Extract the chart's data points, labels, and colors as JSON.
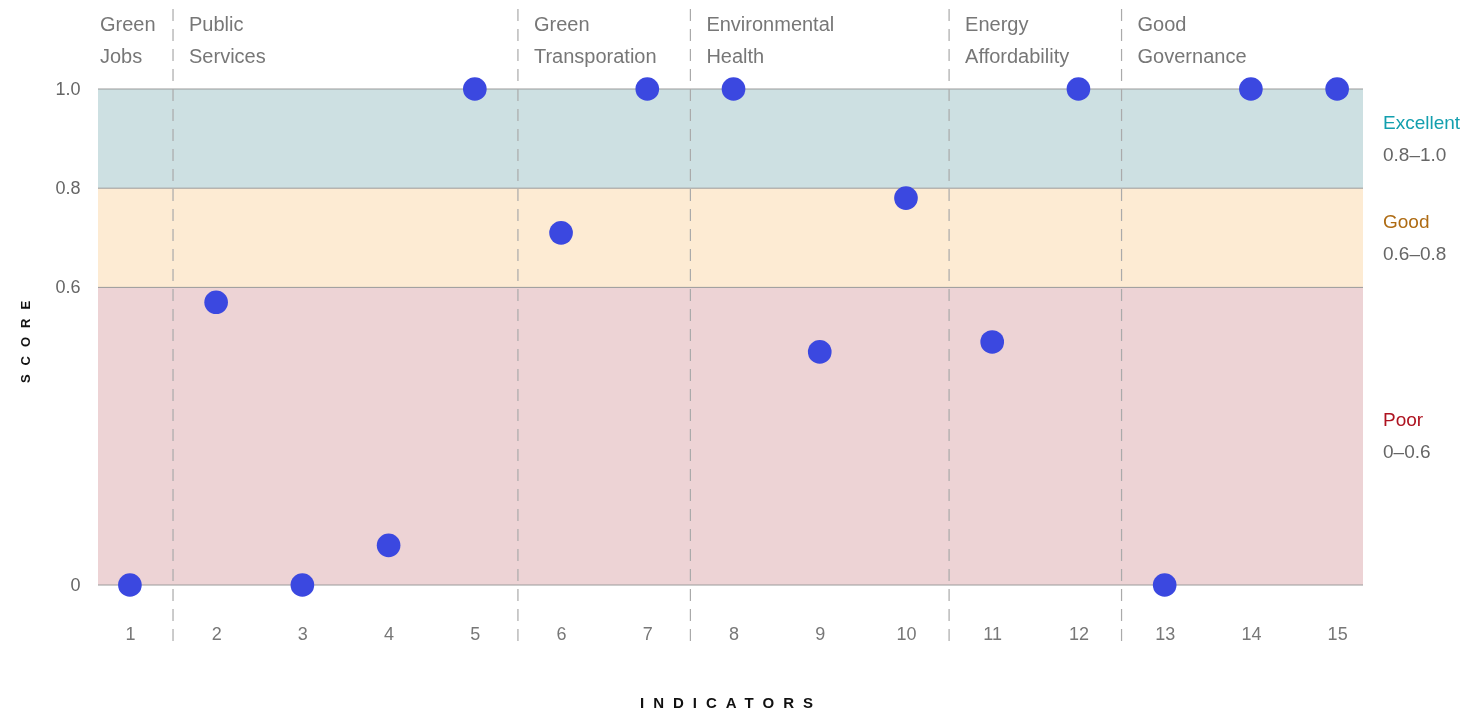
{
  "chart_data": {
    "type": "scatter",
    "xlabel": "INDICATORS",
    "ylabel": "SCORE",
    "x": [
      1,
      2,
      3,
      4,
      5,
      6,
      7,
      8,
      9,
      10,
      11,
      12,
      13,
      14,
      15
    ],
    "values": [
      0,
      0.57,
      0,
      0.08,
      1,
      0.71,
      1,
      1,
      0.47,
      0.78,
      0.49,
      1,
      0,
      1,
      1
    ],
    "color": "#3b48e0",
    "marker": "circle",
    "xlim": [
      0.63,
      15.3
    ],
    "xticks": [
      1,
      2,
      3,
      4,
      5,
      6,
      7,
      8,
      9,
      10,
      11,
      12,
      13,
      14,
      15
    ],
    "ylim": [
      0,
      1
    ],
    "yticks": [
      0,
      0.6,
      0.8,
      {
        "value": 1,
        "label": "1.0"
      }
    ],
    "grid": "y",
    "bands": [
      {
        "axis": "y",
        "from": 0.8,
        "to": 1,
        "label": "Excellent\n0.8–1.0",
        "color": "#cde0e2"
      },
      {
        "axis": "y",
        "from": 0.6,
        "to": 0.8,
        "label": "Good\n0.6–0.8",
        "color": "#fdebd3"
      },
      {
        "axis": "y",
        "from": 0,
        "to": 0.6,
        "label": "Poor\n0–0.6",
        "color": "#edd3d5"
      }
    ],
    "ref_lines": [
      {
        "axis": "x",
        "value": 1.5,
        "label": "Public Services",
        "line_style": "dashed",
        "color": "#aaaaaa"
      },
      {
        "axis": "x",
        "value": 5.5,
        "label": "Green Transporation",
        "line_style": "dashed",
        "color": "#aaaaaa"
      },
      {
        "axis": "x",
        "value": 7.5,
        "label": "Environmental Health",
        "line_style": "dashed",
        "color": "#aaaaaa"
      },
      {
        "axis": "x",
        "value": 10.5,
        "label": "Energy Affordability",
        "line_style": "dashed",
        "color": "#aaaaaa"
      },
      {
        "axis": "x",
        "value": 12.5,
        "label": "Good Governance",
        "line_style": "dashed",
        "color": "#aaaaaa"
      }
    ],
    "annotations": [
      "Green Jobs"
    ]
  }
}
